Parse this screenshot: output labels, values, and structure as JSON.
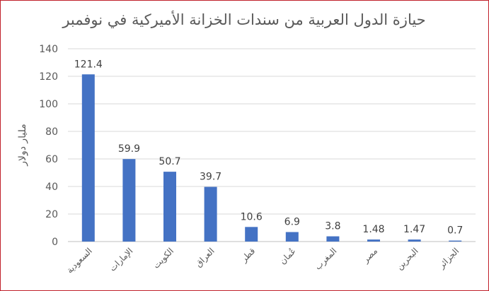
{
  "chart_data": {
    "type": "bar",
    "title": "حيازة الدول العربية من سندات الخزانة الأميركية في نوفمبر",
    "ylabel": "مليار دولار",
    "xlabel": "",
    "categories": [
      "السعودية",
      "الإمارات",
      "الكويت",
      "العراق",
      "قطر",
      "عُمان",
      "المغرب",
      "مصر",
      "البحرين",
      "الجزائر"
    ],
    "values": [
      121.4,
      59.9,
      50.7,
      39.7,
      10.6,
      6.9,
      3.8,
      1.48,
      1.47,
      0.7
    ],
    "data_labels": [
      "121.4",
      "59.9",
      "50.7",
      "39.7",
      "10.6",
      "6.9",
      "3.8",
      "1.48",
      "1.47",
      "0.7"
    ],
    "ylim": [
      0,
      140
    ],
    "yticks": [
      0,
      20,
      40,
      60,
      80,
      100,
      120,
      140
    ],
    "grid": true,
    "bar_color": "#4472c4",
    "legend": "none"
  }
}
